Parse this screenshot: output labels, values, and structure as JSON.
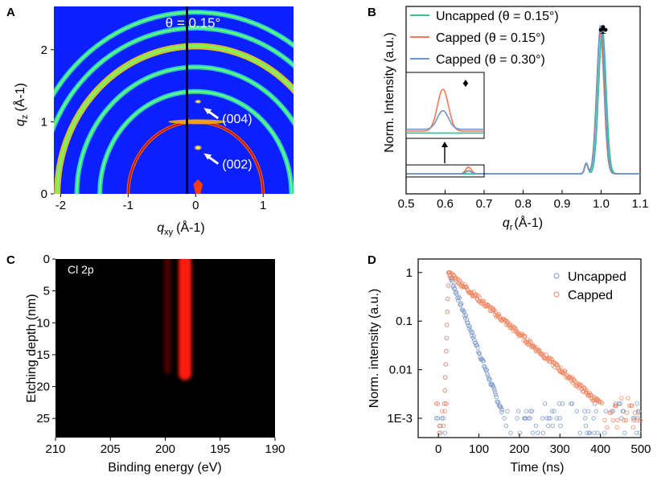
{
  "chart_data": [
    {
      "panel": "A",
      "type": "heatmap",
      "title": "θ = 0.15°",
      "xlabel_main": "q",
      "xlabel_sub": "xy",
      "xlabel_unit": "(Å-1)",
      "ylabel_main": "q",
      "ylabel_sub": "z",
      "ylabel_unit": "(Å-1)",
      "xlim": [
        -2.1,
        1.45
      ],
      "ylim": [
        0,
        2.6
      ],
      "xticks": [
        "-2",
        "-1",
        "0",
        "1"
      ],
      "xtick_values": [
        -2,
        -1,
        0,
        1
      ],
      "yticks": [
        "0",
        "1",
        "2"
      ],
      "ytick_values": [
        0,
        1,
        2
      ],
      "rings_q": [
        1.0,
        1.42,
        1.76,
        2.05,
        2.3,
        2.52
      ],
      "annotations": [
        {
          "label": "(004)",
          "qxy": 0.0,
          "qz": 1.26
        },
        {
          "label": "(002)",
          "qxy": 0.0,
          "qz": 0.63
        }
      ]
    },
    {
      "panel": "B",
      "type": "line",
      "xlabel_main": "q",
      "xlabel_sub": "r",
      "xlabel_unit": "(Å-1)",
      "ylabel": "Norm. Intensity (a.u.)",
      "xlim": [
        0.5,
        1.1
      ],
      "xticks": [
        "0.5",
        "0.6",
        "0.7",
        "0.8",
        "0.9",
        "1.0",
        "1.1"
      ],
      "xtick_values": [
        0.5,
        0.6,
        0.7,
        0.8,
        0.9,
        1.0,
        1.1
      ],
      "ylim": [
        0,
        1.12
      ],
      "series": [
        {
          "name": "Uncapped (θ = 0.15°)",
          "color": "#3dba9a",
          "peak_q": 1.003,
          "peak_height": 0.96,
          "minor_peak": 0.0
        },
        {
          "name": "Capped (θ = 0.15°)",
          "color": "#f47a55",
          "peak_q": 0.998,
          "peak_height": 0.94,
          "minor_peak": 0.045
        },
        {
          "name": "Capped (θ = 0.30°)",
          "color": "#6f94c8",
          "peak_q": 0.999,
          "peak_height": 0.99,
          "minor_peak": 0.02
        }
      ],
      "markers": {
        "main_peak": "♣",
        "minor_peak": "♦"
      }
    },
    {
      "panel": "C",
      "type": "heatmap",
      "label": "Cl 2p",
      "xlabel": "Binding energy (eV)",
      "ylabel": "Etching depth (nm)",
      "xlim": [
        210,
        190
      ],
      "ylim": [
        28,
        0
      ],
      "xticks": [
        "210",
        "205",
        "200",
        "195",
        "190"
      ],
      "xtick_values": [
        210,
        205,
        200,
        195,
        190
      ],
      "yticks": [
        "0",
        "5",
        "10",
        "15",
        "20",
        "25"
      ],
      "ytick_values": [
        0,
        5,
        10,
        15,
        20,
        25
      ],
      "peaks": [
        {
          "energy_ev": 199.8,
          "depth_end_nm": 18,
          "intensity": 0.55
        },
        {
          "energy_ev": 198.2,
          "depth_end_nm": 19,
          "intensity": 1.0
        }
      ]
    },
    {
      "panel": "D",
      "type": "scatter",
      "xlabel": "Time (ns)",
      "ylabel": "Norm. intensity (a.u.)",
      "yscale": "log",
      "xlim": [
        -50,
        500
      ],
      "ylim": [
        0.0004,
        1.9
      ],
      "xticks": [
        "0",
        "100",
        "200",
        "300",
        "400",
        "500"
      ],
      "xtick_values": [
        0,
        100,
        200,
        300,
        400,
        500
      ],
      "yticks": [
        "1",
        "0.1",
        "0.01",
        "1E-3"
      ],
      "ytick_values": [
        1,
        0.1,
        0.01,
        0.001
      ],
      "series": [
        {
          "name": "Uncapped",
          "color": "#7f9cc9",
          "peak_time_ns": 25,
          "decay_ns": 20,
          "noise_floor": 0.0005
        },
        {
          "name": "Capped",
          "color": "#f08a66",
          "peak_time_ns": 25,
          "decay_ns": 60,
          "noise_floor": 0.0008
        }
      ]
    }
  ],
  "panel_letters": [
    "A",
    "B",
    "C",
    "D"
  ]
}
